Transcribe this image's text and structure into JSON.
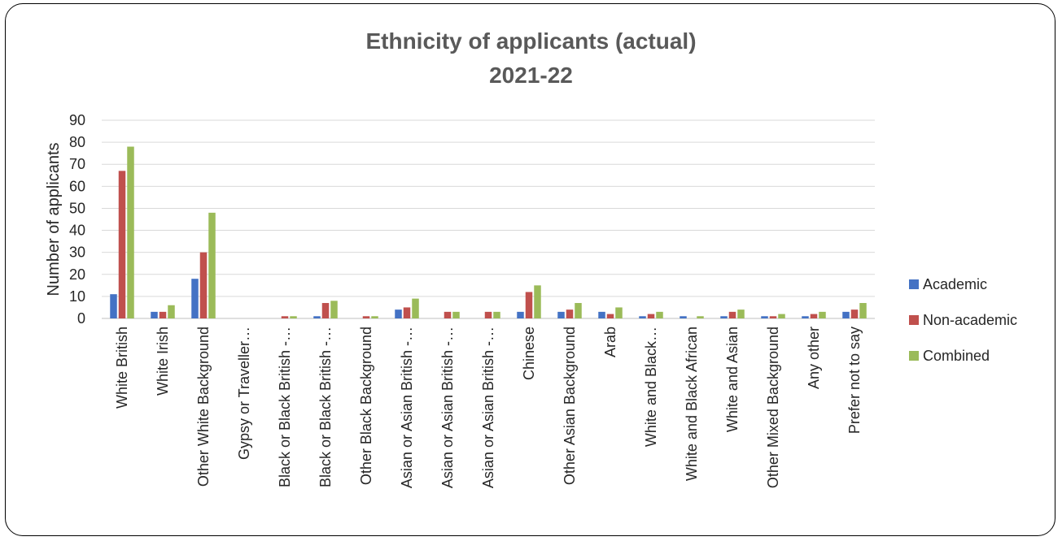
{
  "chart_data": {
    "type": "bar",
    "title_lines": [
      "Ethnicity of applicants (actual)",
      "2021-22"
    ],
    "xlabel": "",
    "ylabel": "Number of applicants",
    "ylim": [
      0,
      90
    ],
    "yticks": [
      0,
      10,
      20,
      30,
      40,
      50,
      60,
      70,
      80,
      90
    ],
    "grid": true,
    "legend_position": "right",
    "categories": [
      "White British",
      "White Irish",
      "Other White Background",
      "Gypsy or Traveller…",
      "Black or Black British -…",
      "Black or Black British -…",
      "Other Black Background",
      "Asian or Asian British -…",
      "Asian or Asian British -…",
      "Asian or Asian British -…",
      "Chinese",
      "Other Asian Background",
      "Arab",
      "White and Black…",
      "White and Black African",
      "White and Asian",
      "Other Mixed Background",
      "Any other",
      "Prefer not to say"
    ],
    "series": [
      {
        "name": "Academic",
        "color": "#4472C4",
        "values": [
          11,
          3,
          18,
          0,
          0,
          1,
          0,
          4,
          0,
          0,
          3,
          3,
          3,
          1,
          1,
          1,
          1,
          1,
          3
        ]
      },
      {
        "name": "Non-academic",
        "color": "#C0504D",
        "values": [
          67,
          3,
          30,
          0,
          1,
          7,
          1,
          5,
          3,
          3,
          12,
          4,
          2,
          2,
          0,
          3,
          1,
          2,
          4
        ]
      },
      {
        "name": "Combined",
        "color": "#9BBB59",
        "values": [
          78,
          6,
          48,
          0,
          1,
          8,
          1,
          9,
          3,
          3,
          15,
          7,
          5,
          3,
          1,
          4,
          2,
          3,
          7
        ]
      }
    ]
  }
}
